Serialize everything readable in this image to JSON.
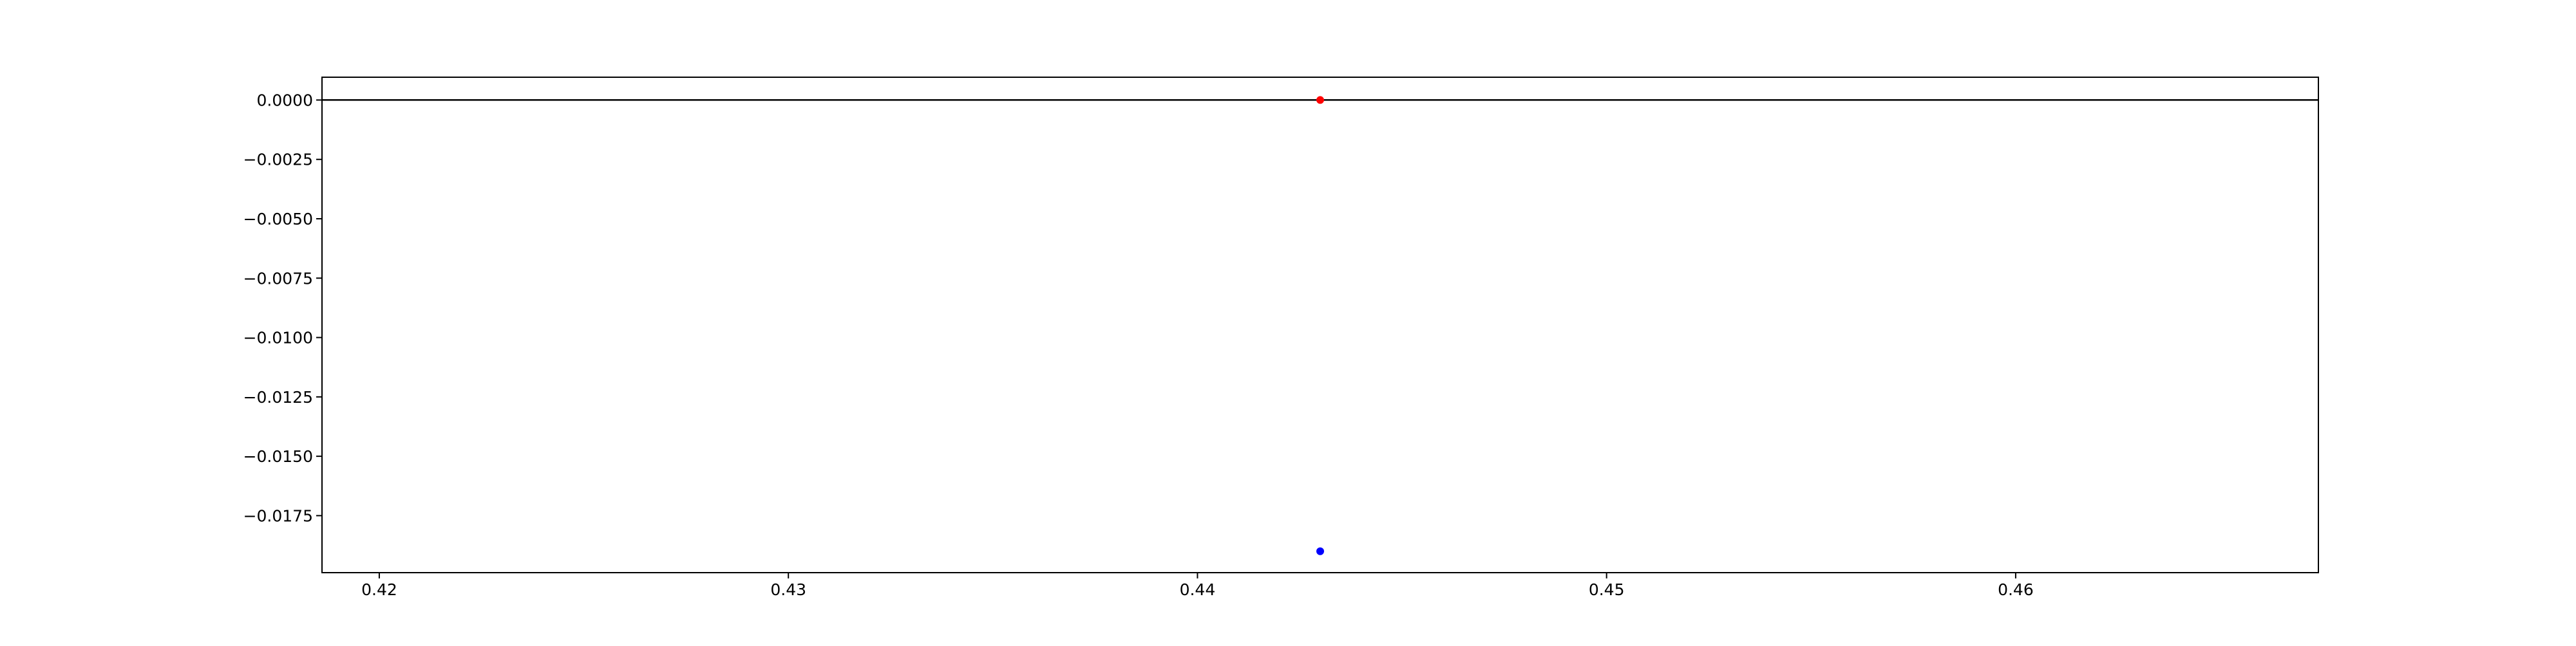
{
  "chart_data": {
    "type": "scatter",
    "title": "",
    "xlabel": "",
    "ylabel": "",
    "xlim": [
      0.4186,
      0.4674
    ],
    "ylim": [
      -0.0199,
      0.00096
    ],
    "x_ticks": [
      0.42,
      0.43,
      0.44,
      0.45,
      0.46
    ],
    "x_tick_labels": [
      "0.42",
      "0.43",
      "0.44",
      "0.45",
      "0.46"
    ],
    "y_ticks": [
      0.0,
      -0.0025,
      -0.005,
      -0.0075,
      -0.01,
      -0.0125,
      -0.015,
      -0.0175
    ],
    "y_tick_labels": [
      "0.0000",
      "−0.0025",
      "−0.0050",
      "−0.0075",
      "−0.0100",
      "−0.0125",
      "−0.0150",
      "−0.0175"
    ],
    "grid": false,
    "reference_line": {
      "y": 0.0,
      "color": "#000000"
    },
    "points": [
      {
        "x": 0.443,
        "y": 0.0,
        "color": "#ff0000"
      },
      {
        "x": 0.443,
        "y": -0.019,
        "color": "#0000ff"
      }
    ]
  }
}
